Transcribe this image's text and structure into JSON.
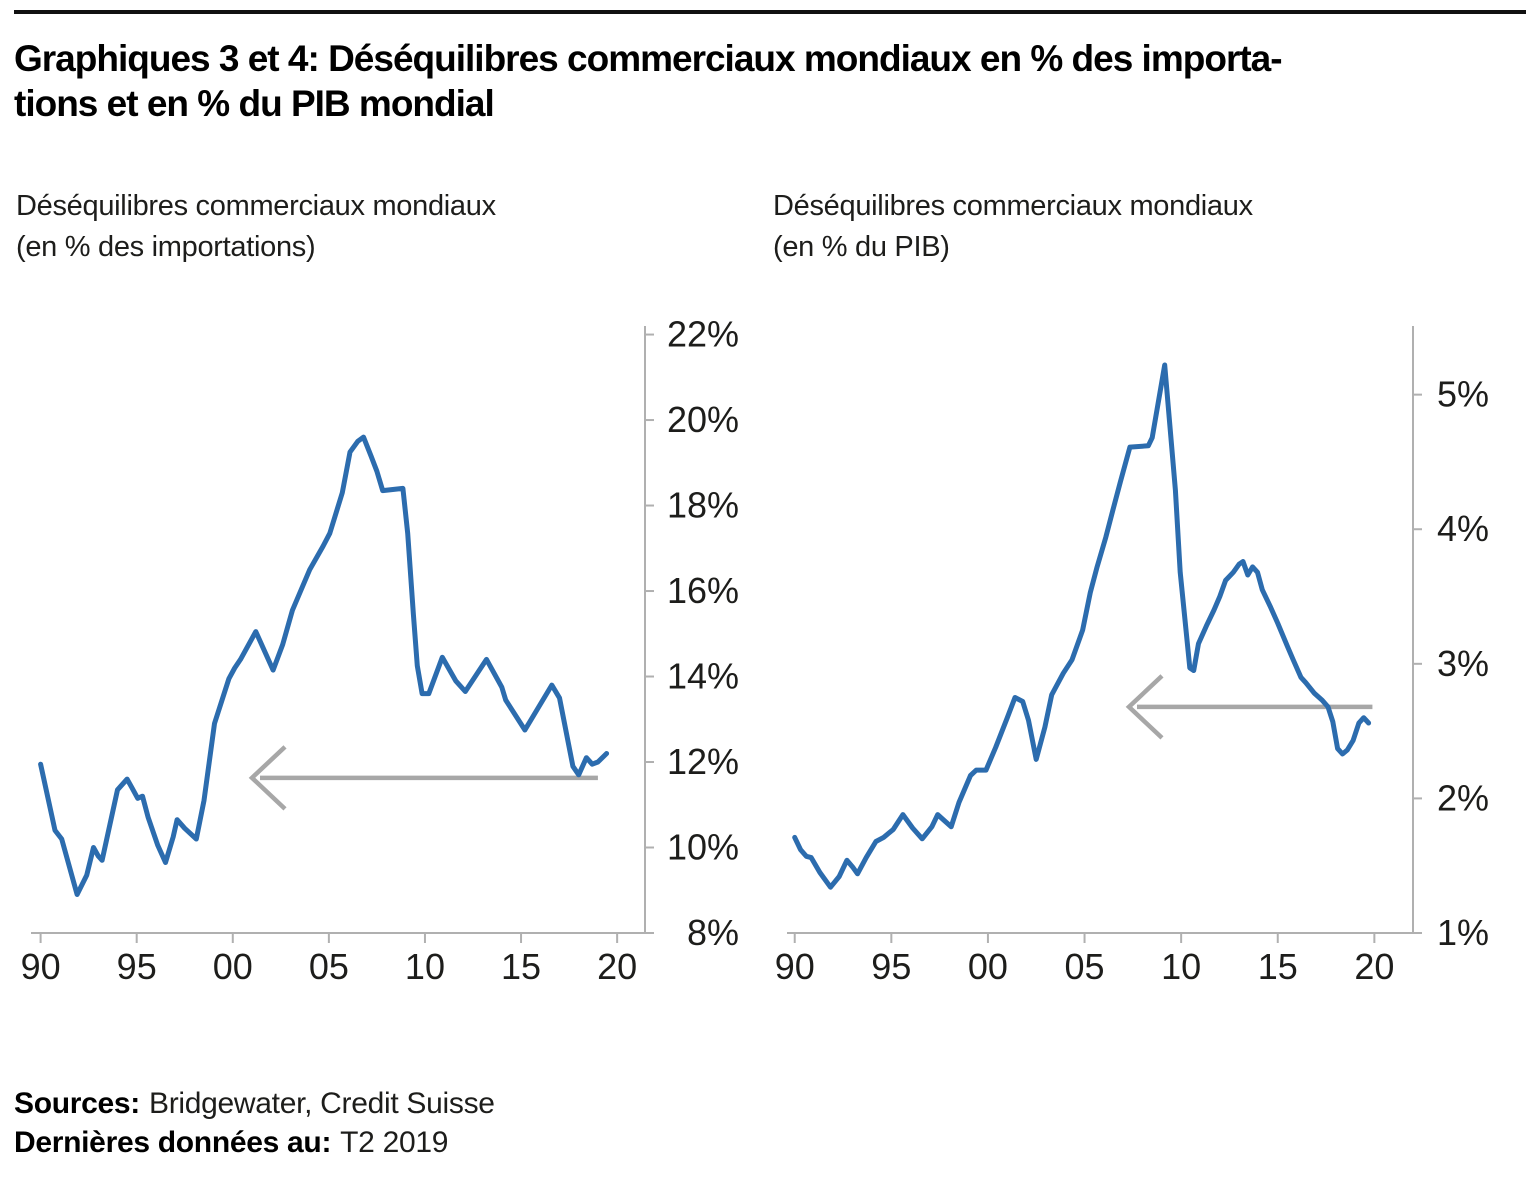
{
  "header": {
    "title_lines": [
      "Graphiques 3 et 4: Déséquilibres commerciaux mondiaux en % des importa-",
      "tions et en % du PIB mondial"
    ]
  },
  "footer": {
    "sources_label": "Sources:",
    "sources_value": "Bridgewater, Credit Suisse",
    "last_data_label": "Dernières données au:",
    "last_data_value": "T2 2019"
  },
  "colors": {
    "line_blue": "#2c6cae",
    "axis_gray": "#b0b0b0",
    "arrow_gray": "#a7a7a7",
    "label_color": "#1d1d1b"
  },
  "chart_data": [
    {
      "type": "line",
      "title_lines": [
        "Déséquilibres commerciaux mondiaux",
        "(en % des importations)"
      ],
      "xlim": [
        1989.5,
        2021.45
      ],
      "ylim": [
        8,
        22.2
      ],
      "y_axis_position": "right",
      "grid": false,
      "legend": "none",
      "x_tick_values": [
        1990,
        1995,
        2000,
        2005,
        2010,
        2015,
        2020
      ],
      "x_tick_labels": [
        "90",
        "95",
        "00",
        "05",
        "10",
        "15",
        "20"
      ],
      "y_tick_values": [
        8,
        10,
        12,
        14,
        16,
        18,
        20,
        22
      ],
      "y_tick_labels": [
        "8%",
        "10%",
        "12%",
        "14%",
        "16%",
        "18%",
        "20%",
        "22%"
      ],
      "arrow": {
        "y": 11.63,
        "x_tail": 2019.0,
        "x_tip": 2001.0,
        "direction": "left"
      },
      "series": [
        {
          "name": "Déséquilibres commerciaux mondiaux (en % des importations)",
          "points": [
            [
              1990.0,
              11.95
            ],
            [
              1990.75,
              10.4
            ],
            [
              1991.1,
              10.2
            ],
            [
              1991.9,
              8.9
            ],
            [
              1992.4,
              9.35
            ],
            [
              1992.75,
              10.0
            ],
            [
              1993.0,
              9.8
            ],
            [
              1993.2,
              9.7
            ],
            [
              1994.0,
              11.35
            ],
            [
              1994.5,
              11.6
            ],
            [
              1994.75,
              11.4
            ],
            [
              1995.05,
              11.15
            ],
            [
              1995.3,
              11.2
            ],
            [
              1995.6,
              10.7
            ],
            [
              1996.1,
              10.05
            ],
            [
              1996.5,
              9.65
            ],
            [
              1996.9,
              10.25
            ],
            [
              1997.1,
              10.65
            ],
            [
              1997.5,
              10.45
            ],
            [
              1998.1,
              10.2
            ],
            [
              1998.5,
              11.1
            ],
            [
              1999.05,
              12.9
            ],
            [
              1999.8,
              13.95
            ],
            [
              2000.1,
              14.2
            ],
            [
              2000.4,
              14.4
            ],
            [
              2001.2,
              15.05
            ],
            [
              2002.1,
              14.15
            ],
            [
              2002.6,
              14.75
            ],
            [
              2003.1,
              15.55
            ],
            [
              2004.0,
              16.5
            ],
            [
              2004.7,
              17.05
            ],
            [
              2005.05,
              17.35
            ],
            [
              2005.7,
              18.3
            ],
            [
              2006.1,
              19.25
            ],
            [
              2006.5,
              19.5
            ],
            [
              2006.8,
              19.6
            ],
            [
              2007.2,
              19.15
            ],
            [
              2007.5,
              18.8
            ],
            [
              2007.8,
              18.35
            ],
            [
              2008.85,
              18.4
            ],
            [
              2009.1,
              17.35
            ],
            [
              2009.4,
              15.45
            ],
            [
              2009.6,
              14.25
            ],
            [
              2009.85,
              13.6
            ],
            [
              2010.2,
              13.6
            ],
            [
              2010.9,
              14.45
            ],
            [
              2011.6,
              13.9
            ],
            [
              2012.1,
              13.65
            ],
            [
              2013.2,
              14.4
            ],
            [
              2014.0,
              13.75
            ],
            [
              2014.2,
              13.45
            ],
            [
              2015.2,
              12.75
            ],
            [
              2016.6,
              13.8
            ],
            [
              2017.0,
              13.5
            ],
            [
              2017.7,
              11.9
            ],
            [
              2018.0,
              11.7
            ],
            [
              2018.4,
              12.1
            ],
            [
              2018.7,
              11.95
            ],
            [
              2019.0,
              12.0
            ],
            [
              2019.45,
              12.2
            ]
          ]
        }
      ]
    },
    {
      "type": "line",
      "title_lines": [
        "Déséquilibres commerciaux mondiaux",
        "(en % du PIB)"
      ],
      "xlim": [
        1989.6,
        2022.0
      ],
      "ylim": [
        1,
        5.51
      ],
      "y_axis_position": "right",
      "grid": false,
      "legend": "none",
      "x_tick_values": [
        1990,
        1995,
        2000,
        2005,
        2010,
        2015,
        2020
      ],
      "x_tick_labels": [
        "90",
        "95",
        "00",
        "05",
        "10",
        "15",
        "20"
      ],
      "y_tick_values": [
        1,
        2,
        3,
        4,
        5
      ],
      "y_tick_labels": [
        "1%",
        "2%",
        "3%",
        "4%",
        "5%"
      ],
      "arrow": {
        "y": 2.68,
        "x_tail": 2019.9,
        "x_tip": 2007.3,
        "direction": "left"
      },
      "series": [
        {
          "name": "Déséquilibres commerciaux mondiaux (en % du PIB)",
          "points": [
            [
              1990.0,
              1.71
            ],
            [
              1990.3,
              1.62
            ],
            [
              1990.6,
              1.57
            ],
            [
              1990.85,
              1.56
            ],
            [
              1991.3,
              1.45
            ],
            [
              1991.85,
              1.34
            ],
            [
              1992.3,
              1.42
            ],
            [
              1992.7,
              1.54
            ],
            [
              1993.0,
              1.49
            ],
            [
              1993.25,
              1.44
            ],
            [
              1993.7,
              1.56
            ],
            [
              1994.2,
              1.68
            ],
            [
              1994.6,
              1.71
            ],
            [
              1995.1,
              1.77
            ],
            [
              1995.6,
              1.88
            ],
            [
              1996.1,
              1.78
            ],
            [
              1996.6,
              1.7
            ],
            [
              1997.1,
              1.79
            ],
            [
              1997.4,
              1.88
            ],
            [
              1997.7,
              1.84
            ],
            [
              1998.1,
              1.79
            ],
            [
              1998.5,
              1.97
            ],
            [
              1999.1,
              2.17
            ],
            [
              1999.4,
              2.21
            ],
            [
              1999.9,
              2.21
            ],
            [
              2000.4,
              2.38
            ],
            [
              2001.0,
              2.6
            ],
            [
              2001.4,
              2.75
            ],
            [
              2001.8,
              2.72
            ],
            [
              2002.1,
              2.58
            ],
            [
              2002.5,
              2.29
            ],
            [
              2002.95,
              2.53
            ],
            [
              2003.3,
              2.77
            ],
            [
              2003.9,
              2.93
            ],
            [
              2004.35,
              3.03
            ],
            [
              2004.9,
              3.25
            ],
            [
              2005.3,
              3.53
            ],
            [
              2005.65,
              3.72
            ],
            [
              2006.1,
              3.94
            ],
            [
              2006.5,
              4.16
            ],
            [
              2006.85,
              4.35
            ],
            [
              2007.35,
              4.61
            ],
            [
              2008.3,
              4.62
            ],
            [
              2008.5,
              4.68
            ],
            [
              2009.15,
              5.22
            ],
            [
              2009.7,
              4.29
            ],
            [
              2009.95,
              3.68
            ],
            [
              2010.15,
              3.4
            ],
            [
              2010.45,
              2.97
            ],
            [
              2010.65,
              2.95
            ],
            [
              2010.9,
              3.15
            ],
            [
              2011.3,
              3.28
            ],
            [
              2011.7,
              3.4
            ],
            [
              2012.0,
              3.5
            ],
            [
              2012.3,
              3.62
            ],
            [
              2012.7,
              3.68
            ],
            [
              2013.0,
              3.74
            ],
            [
              2013.2,
              3.76
            ],
            [
              2013.45,
              3.66
            ],
            [
              2013.7,
              3.72
            ],
            [
              2013.95,
              3.68
            ],
            [
              2014.2,
              3.55
            ],
            [
              2014.6,
              3.43
            ],
            [
              2015.0,
              3.3
            ],
            [
              2015.5,
              3.13
            ],
            [
              2015.8,
              3.03
            ],
            [
              2016.2,
              2.9
            ],
            [
              2016.45,
              2.86
            ],
            [
              2016.9,
              2.78
            ],
            [
              2017.3,
              2.73
            ],
            [
              2017.6,
              2.68
            ],
            [
              2017.85,
              2.57
            ],
            [
              2018.1,
              2.37
            ],
            [
              2018.35,
              2.33
            ],
            [
              2018.6,
              2.36
            ],
            [
              2018.9,
              2.43
            ],
            [
              2019.2,
              2.56
            ],
            [
              2019.45,
              2.6
            ],
            [
              2019.7,
              2.56
            ]
          ]
        }
      ]
    }
  ]
}
